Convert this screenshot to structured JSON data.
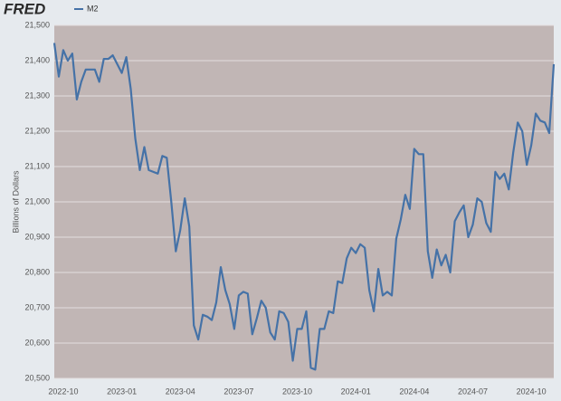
{
  "header": {
    "logo": "FRED"
  },
  "chart_data": {
    "type": "line",
    "y_label": "Billions of Dollars",
    "categories": [
      null,
      null,
      "2022-10",
      null,
      null,
      null,
      null,
      null,
      null,
      null,
      null,
      null,
      null,
      null,
      null,
      "2023-01",
      null,
      null,
      null,
      null,
      null,
      null,
      null,
      null,
      null,
      null,
      null,
      null,
      "2023-04",
      null,
      null,
      null,
      null,
      null,
      null,
      null,
      null,
      null,
      null,
      null,
      null,
      "2023-07",
      null,
      null,
      null,
      null,
      null,
      null,
      null,
      null,
      null,
      null,
      null,
      null,
      "2023-10",
      null,
      null,
      null,
      null,
      null,
      null,
      null,
      null,
      null,
      null,
      null,
      null,
      "2024-01",
      null,
      null,
      null,
      null,
      null,
      null,
      null,
      null,
      null,
      null,
      null,
      null,
      "2024-04",
      null,
      null,
      null,
      null,
      null,
      null,
      null,
      null,
      null,
      null,
      null,
      null,
      "2024-07",
      null,
      null,
      null,
      null,
      null,
      null,
      null,
      null,
      null,
      null,
      null,
      null,
      "2024-10",
      null,
      null,
      null,
      null,
      null
    ],
    "series": [
      {
        "name": "M2",
        "color": "#4572a7",
        "values": [
          21450,
          21355,
          21430,
          21400,
          21420,
          21290,
          21340,
          21375,
          21375,
          21375,
          21340,
          21405,
          21405,
          21415,
          21390,
          21365,
          21410,
          21320,
          21180,
          21090,
          21155,
          21090,
          21085,
          21080,
          21130,
          21125,
          21000,
          20860,
          20920,
          21010,
          20930,
          20650,
          20610,
          20680,
          20675,
          20665,
          20715,
          20815,
          20750,
          20710,
          20640,
          20735,
          20745,
          20740,
          20625,
          20670,
          20720,
          20700,
          20630,
          20610,
          20690,
          20685,
          20660,
          20550,
          20640,
          20640,
          20690,
          20530,
          20525,
          20640,
          20640,
          20690,
          20685,
          20775,
          20770,
          20840,
          20870,
          20855,
          20880,
          20870,
          20750,
          20690,
          20810,
          20735,
          20745,
          20735,
          20895,
          20950,
          21020,
          20980,
          21150,
          21135,
          21135,
          20860,
          20785,
          20865,
          20820,
          20850,
          20800,
          20945,
          20970,
          20990,
          20900,
          20935,
          21010,
          21000,
          20940,
          20915,
          21085,
          21065,
          21080,
          21035,
          21140,
          21225,
          21200,
          21105,
          21160,
          21250,
          21230,
          21225,
          21195,
          21390
        ]
      }
    ],
    "ylim": [
      20500,
      21500
    ],
    "yticks": [
      {
        "value": 20500,
        "label": "20,500"
      },
      {
        "value": 20600,
        "label": "20,600"
      },
      {
        "value": 20700,
        "label": "20,700"
      },
      {
        "value": 20800,
        "label": "20,800"
      },
      {
        "value": 20900,
        "label": "20,900"
      },
      {
        "value": 21000,
        "label": "21,000"
      },
      {
        "value": 21100,
        "label": "21,100"
      },
      {
        "value": 21200,
        "label": "21,200"
      },
      {
        "value": 21300,
        "label": "21,300"
      },
      {
        "value": 21400,
        "label": "21,400"
      },
      {
        "value": 21500,
        "label": "21,500"
      }
    ],
    "grid": true
  }
}
